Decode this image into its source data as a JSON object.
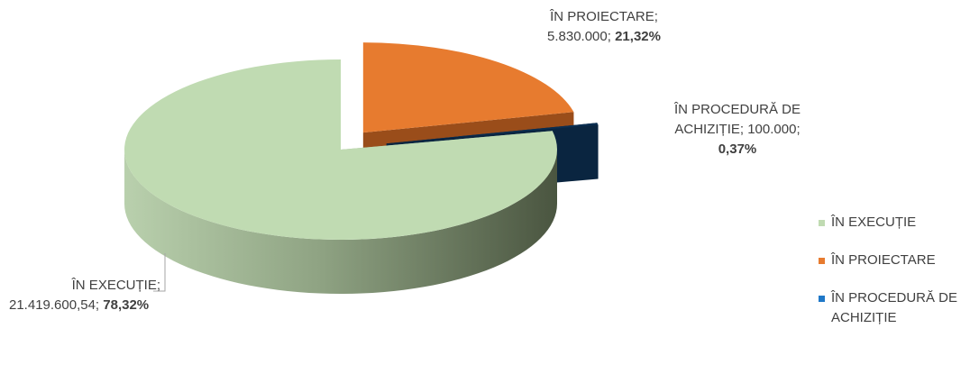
{
  "chart_data": {
    "type": "pie",
    "title": "",
    "categories": [
      "ÎN EXECUȚIE",
      "ÎN PROIECTARE",
      "ÎN PROCEDURĂ DE ACHIZIȚIE"
    ],
    "values": [
      21419600.54,
      5830000,
      100000
    ],
    "percent": [
      78.32,
      21.32,
      0.37
    ],
    "colors": [
      "#c0dbb2",
      "#e77b2f",
      "#0b2e51"
    ],
    "legend_position": "right",
    "labels": [
      {
        "name": "ÎN EXECUȚIE;",
        "value": "21.419.600,54;",
        "percent": "78,32%"
      },
      {
        "name": "ÎN PROIECTARE;",
        "value": "5.830.000;",
        "percent": "21,32%"
      },
      {
        "name_line1": "ÎN PROCEDURĂ DE",
        "name_line2": "ACHIZIȚIE;",
        "value": "100.000;",
        "percent": "0,37%"
      }
    ],
    "legend": [
      {
        "line1": "ÎN EXECUȚIE",
        "line2": ""
      },
      {
        "line1": "ÎN PROIECTARE",
        "line2": ""
      },
      {
        "line1": "ÎN PROCEDURĂ DE",
        "line2": "ACHIZIȚIE"
      }
    ]
  }
}
